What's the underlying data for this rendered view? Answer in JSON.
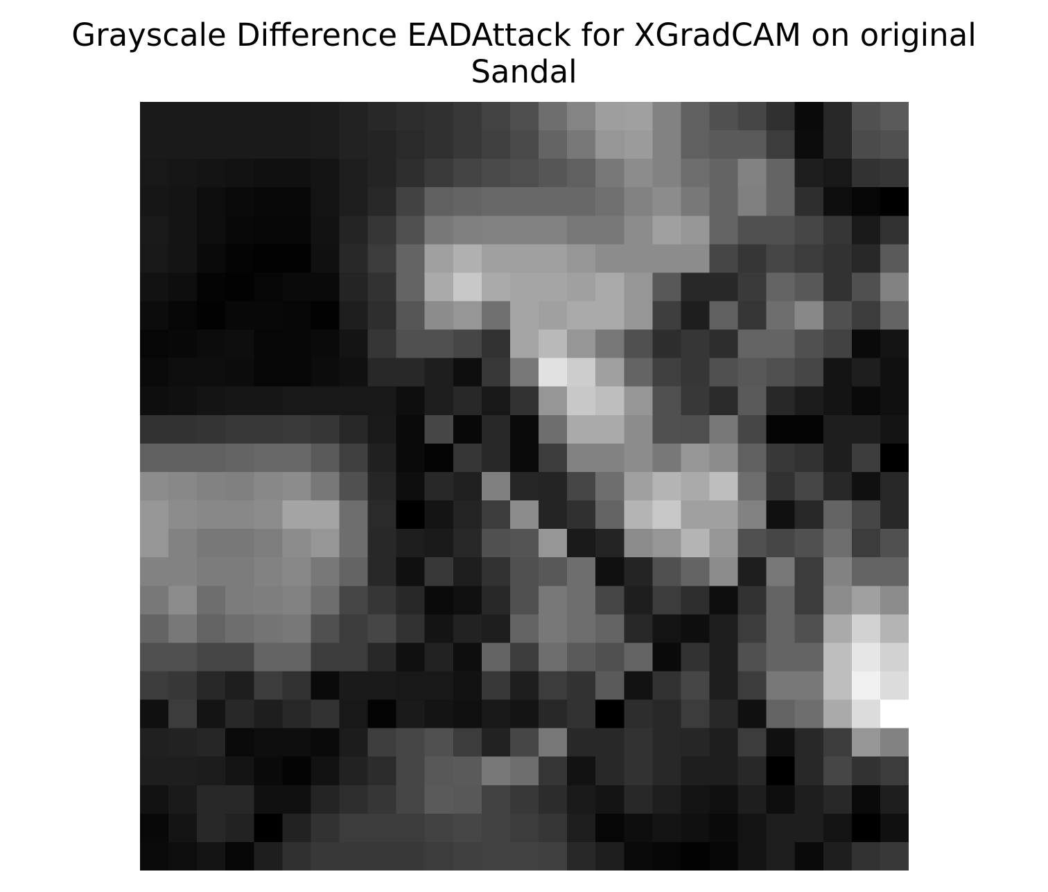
{
  "chart_data": {
    "type": "heatmap",
    "title": "Grayscale Difference EADAttack for XGradCAM on original Sandal",
    "title_lines": [
      "Grayscale Difference EADAttack for XGradCAM on original",
      "Sandal"
    ],
    "colormap": "gray",
    "axes_visible": false,
    "value_range": [
      0,
      255
    ],
    "values": [
      [
        26,
        26,
        26,
        26,
        26,
        26,
        28,
        34,
        40,
        45,
        48,
        56,
        67,
        78,
        110,
        132,
        158,
        160,
        130,
        96,
        80,
        70,
        48,
        10,
        40,
        80,
        90
      ],
      [
        26,
        26,
        26,
        26,
        26,
        26,
        28,
        34,
        36,
        42,
        48,
        56,
        64,
        74,
        100,
        120,
        150,
        155,
        130,
        96,
        90,
        90,
        60,
        12,
        40,
        75,
        80
      ],
      [
        24,
        22,
        20,
        18,
        16,
        16,
        20,
        30,
        36,
        46,
        58,
        68,
        74,
        78,
        86,
        96,
        120,
        140,
        130,
        110,
        100,
        130,
        100,
        30,
        24,
        50,
        54
      ],
      [
        22,
        20,
        14,
        10,
        8,
        8,
        20,
        30,
        40,
        66,
        96,
        100,
        104,
        104,
        104,
        104,
        112,
        130,
        140,
        120,
        100,
        128,
        100,
        46,
        14,
        6,
        0
      ],
      [
        26,
        20,
        14,
        8,
        6,
        6,
        18,
        36,
        54,
        80,
        120,
        128,
        130,
        130,
        130,
        120,
        120,
        140,
        160,
        150,
        100,
        80,
        80,
        70,
        54,
        26,
        50
      ],
      [
        24,
        20,
        10,
        4,
        2,
        2,
        16,
        40,
        60,
        100,
        160,
        176,
        160,
        160,
        160,
        150,
        140,
        140,
        140,
        140,
        70,
        54,
        70,
        60,
        50,
        40,
        90
      ],
      [
        18,
        14,
        4,
        2,
        6,
        10,
        10,
        36,
        50,
        100,
        170,
        200,
        170,
        165,
        165,
        160,
        170,
        150,
        88,
        40,
        40,
        58,
        100,
        88,
        50,
        80,
        130
      ],
      [
        12,
        6,
        2,
        8,
        8,
        6,
        2,
        30,
        46,
        86,
        140,
        150,
        112,
        165,
        160,
        170,
        170,
        150,
        62,
        30,
        96,
        54,
        110,
        136,
        80,
        60,
        100
      ],
      [
        6,
        8,
        12,
        14,
        6,
        6,
        10,
        20,
        54,
        80,
        80,
        70,
        50,
        165,
        185,
        150,
        120,
        80,
        45,
        54,
        45,
        100,
        100,
        80,
        66,
        10,
        20
      ],
      [
        10,
        14,
        14,
        12,
        6,
        6,
        12,
        16,
        40,
        40,
        30,
        14,
        56,
        120,
        225,
        205,
        160,
        100,
        64,
        54,
        80,
        88,
        80,
        70,
        20,
        30,
        16
      ],
      [
        14,
        16,
        20,
        22,
        22,
        24,
        24,
        24,
        24,
        14,
        30,
        40,
        24,
        50,
        150,
        200,
        190,
        150,
        80,
        56,
        42,
        90,
        40,
        28,
        20,
        10,
        16
      ],
      [
        50,
        50,
        52,
        56,
        56,
        58,
        54,
        40,
        26,
        10,
        70,
        8,
        40,
        10,
        110,
        170,
        170,
        140,
        80,
        78,
        120,
        70,
        4,
        4,
        30,
        30,
        20
      ],
      [
        96,
        96,
        96,
        100,
        104,
        104,
        90,
        64,
        32,
        10,
        4,
        54,
        40,
        10,
        60,
        130,
        130,
        140,
        120,
        150,
        140,
        96,
        56,
        50,
        30,
        60,
        0
      ],
      [
        140,
        136,
        130,
        128,
        136,
        140,
        120,
        80,
        38,
        14,
        40,
        32,
        128,
        38,
        36,
        70,
        110,
        160,
        180,
        170,
        190,
        110,
        50,
        70,
        40,
        16,
        40
      ],
      [
        150,
        140,
        136,
        136,
        140,
        164,
        164,
        110,
        42,
        0,
        20,
        36,
        60,
        140,
        36,
        48,
        100,
        180,
        200,
        160,
        160,
        130,
        16,
        40,
        100,
        70,
        40
      ],
      [
        150,
        130,
        120,
        120,
        126,
        140,
        150,
        110,
        40,
        30,
        26,
        40,
        80,
        84,
        150,
        26,
        36,
        140,
        150,
        180,
        150,
        80,
        70,
        80,
        110,
        60,
        80
      ],
      [
        130,
        130,
        124,
        124,
        130,
        136,
        120,
        100,
        40,
        16,
        56,
        30,
        50,
        80,
        88,
        110,
        16,
        36,
        80,
        100,
        140,
        30,
        120,
        60,
        130,
        100,
        100
      ],
      [
        120,
        140,
        110,
        124,
        126,
        130,
        110,
        70,
        54,
        40,
        10,
        16,
        40,
        80,
        120,
        110,
        70,
        30,
        60,
        46,
        14,
        50,
        100,
        60,
        140,
        160,
        140
      ],
      [
        100,
        120,
        100,
        110,
        116,
        120,
        80,
        60,
        70,
        50,
        20,
        34,
        30,
        100,
        120,
        110,
        100,
        40,
        20,
        14,
        30,
        60,
        100,
        80,
        170,
        210,
        180
      ],
      [
        80,
        80,
        70,
        70,
        100,
        100,
        60,
        60,
        40,
        16,
        34,
        14,
        100,
        60,
        110,
        90,
        80,
        100,
        10,
        50,
        30,
        80,
        100,
        100,
        190,
        230,
        210
      ],
      [
        60,
        55,
        40,
        30,
        60,
        50,
        10,
        26,
        26,
        24,
        24,
        18,
        56,
        30,
        60,
        50,
        90,
        18,
        50,
        70,
        30,
        60,
        120,
        120,
        190,
        240,
        220
      ],
      [
        16,
        60,
        20,
        40,
        30,
        40,
        50,
        24,
        4,
        26,
        20,
        16,
        24,
        20,
        40,
        50,
        0,
        45,
        40,
        60,
        40,
        16,
        100,
        110,
        170,
        220,
        255
      ],
      [
        32,
        34,
        38,
        10,
        14,
        14,
        10,
        28,
        62,
        70,
        80,
        60,
        34,
        70,
        120,
        40,
        40,
        50,
        40,
        38,
        30,
        60,
        16,
        40,
        60,
        150,
        130
      ],
      [
        30,
        30,
        28,
        20,
        10,
        4,
        18,
        34,
        44,
        70,
        88,
        90,
        120,
        110,
        54,
        18,
        40,
        50,
        40,
        30,
        30,
        40,
        0,
        40,
        70,
        50,
        60
      ],
      [
        18,
        26,
        40,
        40,
        16,
        16,
        36,
        46,
        54,
        70,
        90,
        88,
        66,
        56,
        44,
        26,
        20,
        40,
        30,
        20,
        16,
        30,
        14,
        30,
        40,
        10,
        30
      ],
      [
        8,
        20,
        40,
        34,
        0,
        34,
        50,
        60,
        60,
        60,
        66,
        70,
        66,
        60,
        54,
        30,
        6,
        14,
        20,
        16,
        10,
        20,
        30,
        30,
        20,
        0,
        16
      ],
      [
        10,
        14,
        20,
        6,
        30,
        48,
        56,
        56,
        56,
        56,
        60,
        64,
        66,
        66,
        64,
        40,
        30,
        10,
        6,
        2,
        6,
        20,
        30,
        10,
        30,
        50,
        56
      ]
    ]
  }
}
